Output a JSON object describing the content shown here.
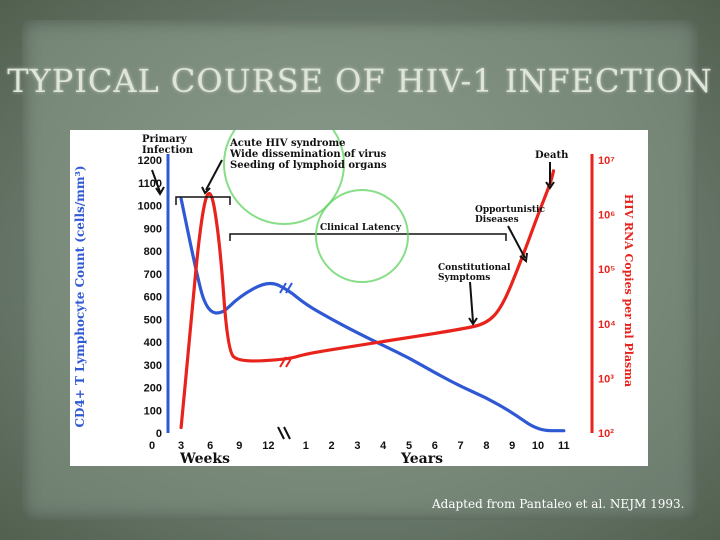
{
  "slide": {
    "title": "TYPICAL COURSE OF HIV-1 INFECTION",
    "caption": "Adapted from Pantaleo et al. NEJM 1993."
  },
  "chart_data": {
    "type": "line",
    "title": "",
    "y_left_label": "CD4+ T Lymphocyte Count (cells/mm³)",
    "y_right_label": "HIV RNA Copies per ml Plasma",
    "y_left_ticks": [
      "1200",
      "1100",
      "1000",
      "900",
      "800",
      "700",
      "600",
      "500",
      "400",
      "300",
      "200",
      "100",
      "0"
    ],
    "y_right_ticks": [
      "10⁷",
      "10⁶",
      "10⁵",
      "10⁴",
      "10³",
      "10²"
    ],
    "x_weeks_label": "Weeks",
    "x_years_label": "Years",
    "x_weeks_ticks": [
      "0",
      "3",
      "6",
      "9",
      "12"
    ],
    "x_years_ticks": [
      "1",
      "2",
      "3",
      "4",
      "5",
      "6",
      "7",
      "8",
      "9",
      "10",
      "11"
    ],
    "ylim_left": [
      0,
      1200
    ],
    "ylim_right_log10": [
      2,
      7
    ],
    "series": [
      {
        "name": "CD4+ T Lymphocyte Count",
        "color": "#2f58d4",
        "axis": "left",
        "points": [
          {
            "segment": "weeks",
            "t": 3,
            "v": 1030
          },
          {
            "segment": "weeks",
            "t": 4.5,
            "v": 720
          },
          {
            "segment": "weeks",
            "t": 5.5,
            "v": 550
          },
          {
            "segment": "weeks",
            "t": 7,
            "v": 515
          },
          {
            "segment": "weeks",
            "t": 9,
            "v": 600
          },
          {
            "segment": "weeks",
            "t": 12,
            "v": 670
          },
          {
            "segment": "weeks",
            "t": 14,
            "v": 630
          },
          {
            "segment": "years",
            "t": 1,
            "v": 565
          },
          {
            "segment": "years",
            "t": 2,
            "v": 500
          },
          {
            "segment": "years",
            "t": 3,
            "v": 440
          },
          {
            "segment": "years",
            "t": 4,
            "v": 385
          },
          {
            "segment": "years",
            "t": 5,
            "v": 330
          },
          {
            "segment": "years",
            "t": 6,
            "v": 265
          },
          {
            "segment": "years",
            "t": 7,
            "v": 205
          },
          {
            "segment": "years",
            "t": 8,
            "v": 155
          },
          {
            "segment": "years",
            "t": 9,
            "v": 90
          },
          {
            "segment": "years",
            "t": 10,
            "v": 10
          },
          {
            "segment": "years",
            "t": 11,
            "v": 10
          }
        ]
      },
      {
        "name": "HIV RNA Copies per ml Plasma",
        "color": "#e8231c",
        "axis": "right",
        "points": [
          {
            "segment": "weeks",
            "t": 3,
            "v": 2.1
          },
          {
            "segment": "weeks",
            "t": 3.8,
            "v": 3.6
          },
          {
            "segment": "weeks",
            "t": 5,
            "v": 5.9
          },
          {
            "segment": "weeks",
            "t": 6,
            "v": 6.6
          },
          {
            "segment": "weeks",
            "t": 7,
            "v": 5.5
          },
          {
            "segment": "weeks",
            "t": 7.8,
            "v": 3.5
          },
          {
            "segment": "weeks",
            "t": 9,
            "v": 3.3
          },
          {
            "segment": "weeks",
            "t": 14,
            "v": 3.35
          },
          {
            "segment": "years",
            "t": 1,
            "v": 3.45
          },
          {
            "segment": "years",
            "t": 3,
            "v": 3.6
          },
          {
            "segment": "years",
            "t": 5,
            "v": 3.75
          },
          {
            "segment": "years",
            "t": 7,
            "v": 3.9
          },
          {
            "segment": "years",
            "t": 8,
            "v": 4.0
          },
          {
            "segment": "years",
            "t": 8.6,
            "v": 4.3
          },
          {
            "segment": "years",
            "t": 9.3,
            "v": 5.1
          },
          {
            "segment": "years",
            "t": 10,
            "v": 6.0
          },
          {
            "segment": "years",
            "t": 10.5,
            "v": 6.6
          },
          {
            "segment": "years",
            "t": 10.6,
            "v": 6.8
          }
        ]
      }
    ],
    "annotations": [
      {
        "id": "primary",
        "text": [
          "Primary",
          "Infection"
        ]
      },
      {
        "id": "acute",
        "text": [
          "Acute HIV syndrome",
          "Wide dissemination of virus",
          "Seeding of lymphoid organs"
        ]
      },
      {
        "id": "latency",
        "text": [
          "Clinical Latency"
        ]
      },
      {
        "id": "death",
        "text": [
          "Death"
        ]
      },
      {
        "id": "opportunistic",
        "text": [
          "Opportunistic",
          "Diseases"
        ]
      },
      {
        "id": "constitutional",
        "text": [
          "Constitutional",
          "Symptoms"
        ]
      }
    ],
    "grid": false,
    "colors": {
      "left_axis": "#2f58d4",
      "right_axis": "#e8231c",
      "highlight_circle": "#5fd35f"
    }
  }
}
